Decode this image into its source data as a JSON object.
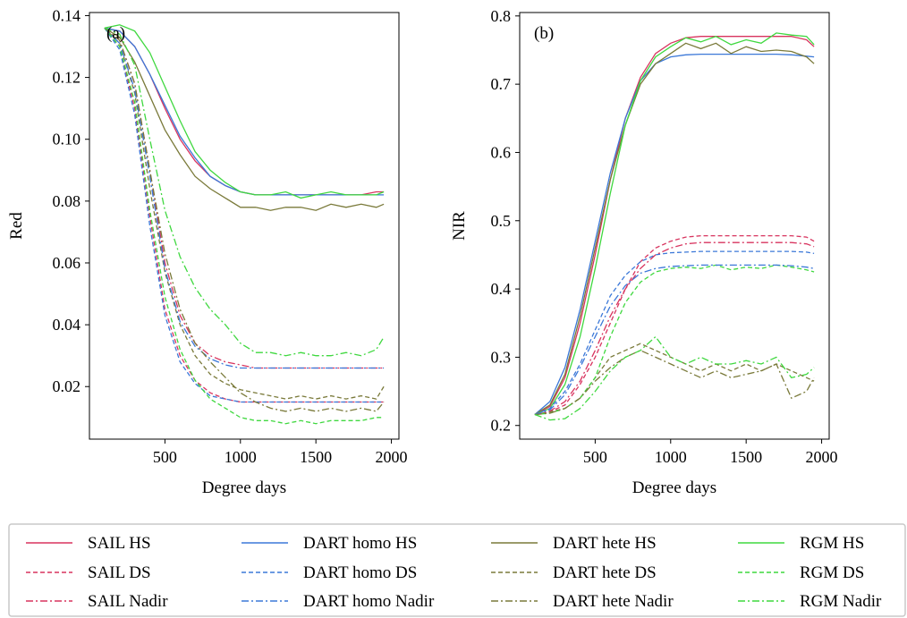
{
  "figure": {
    "legend_entries": [
      {
        "label": "SAIL HS",
        "color": "#d8345f",
        "dash": "solid"
      },
      {
        "label": "DART homo HS",
        "color": "#3b78d8",
        "dash": "solid"
      },
      {
        "label": "DART hete HS",
        "color": "#7a7a3a",
        "dash": "solid"
      },
      {
        "label": "RGM HS",
        "color": "#3fd83f",
        "dash": "solid"
      },
      {
        "label": "SAIL DS",
        "color": "#d8345f",
        "dash": "dashed"
      },
      {
        "label": "DART homo DS",
        "color": "#3b78d8",
        "dash": "dashed"
      },
      {
        "label": "DART hete DS",
        "color": "#7a7a3a",
        "dash": "dashed"
      },
      {
        "label": "RGM DS",
        "color": "#3fd83f",
        "dash": "dashed"
      },
      {
        "label": "SAIL Nadir",
        "color": "#d8345f",
        "dash": "dashdot"
      },
      {
        "label": "DART homo Nadir",
        "color": "#3b78d8",
        "dash": "dashdot"
      },
      {
        "label": "DART hete Nadir",
        "color": "#7a7a3a",
        "dash": "dashdot"
      },
      {
        "label": "RGM Nadir",
        "color": "#3fd83f",
        "dash": "dashdot"
      }
    ]
  },
  "chart_data": [
    {
      "type": "line",
      "panel_label": "(a)",
      "xlabel": "Degree days",
      "ylabel": "Red",
      "xlim": [
        0,
        2050
      ],
      "ylim": [
        0.003,
        0.141
      ],
      "xticks": [
        500,
        1000,
        1500,
        2000
      ],
      "yticks": [
        0.02,
        0.04,
        0.06,
        0.08,
        0.1,
        0.12,
        0.14
      ],
      "ytick_labels": [
        "0.02",
        "0.04",
        "0.06",
        "0.08",
        "0.10",
        "0.12",
        "0.14"
      ],
      "x": [
        100,
        200,
        300,
        400,
        500,
        600,
        700,
        800,
        900,
        1000,
        1100,
        1200,
        1300,
        1400,
        1500,
        1600,
        1700,
        1800,
        1900,
        1950
      ],
      "series": [
        {
          "name": "SAIL HS",
          "values": [
            0.136,
            0.135,
            0.13,
            0.121,
            0.11,
            0.1,
            0.093,
            0.088,
            0.085,
            0.083,
            0.082,
            0.082,
            0.082,
            0.082,
            0.082,
            0.082,
            0.082,
            0.082,
            0.083,
            0.083
          ]
        },
        {
          "name": "DART homo HS",
          "values": [
            0.136,
            0.135,
            0.13,
            0.121,
            0.111,
            0.101,
            0.094,
            0.088,
            0.085,
            0.083,
            0.082,
            0.082,
            0.082,
            0.082,
            0.082,
            0.082,
            0.082,
            0.082,
            0.082,
            0.082
          ]
        },
        {
          "name": "DART hete HS",
          "values": [
            0.136,
            0.133,
            0.125,
            0.114,
            0.103,
            0.095,
            0.088,
            0.084,
            0.081,
            0.078,
            0.078,
            0.077,
            0.078,
            0.078,
            0.077,
            0.079,
            0.078,
            0.079,
            0.078,
            0.079
          ]
        },
        {
          "name": "RGM HS",
          "values": [
            0.136,
            0.137,
            0.135,
            0.128,
            0.117,
            0.106,
            0.096,
            0.09,
            0.086,
            0.083,
            0.082,
            0.082,
            0.083,
            0.081,
            0.082,
            0.083,
            0.082,
            0.082,
            0.082,
            0.083
          ]
        },
        {
          "name": "SAIL DS",
          "values": [
            0.136,
            0.13,
            0.11,
            0.075,
            0.045,
            0.03,
            0.022,
            0.018,
            0.016,
            0.015,
            0.015,
            0.015,
            0.015,
            0.015,
            0.015,
            0.015,
            0.015,
            0.015,
            0.015,
            0.015
          ]
        },
        {
          "name": "DART homo DS",
          "values": [
            0.136,
            0.129,
            0.108,
            0.072,
            0.043,
            0.028,
            0.021,
            0.017,
            0.016,
            0.015,
            0.015,
            0.015,
            0.015,
            0.015,
            0.015,
            0.015,
            0.015,
            0.015,
            0.015,
            0.015
          ]
        },
        {
          "name": "DART hete DS",
          "values": [
            0.136,
            0.131,
            0.115,
            0.084,
            0.057,
            0.04,
            0.03,
            0.024,
            0.021,
            0.019,
            0.018,
            0.017,
            0.016,
            0.017,
            0.016,
            0.017,
            0.016,
            0.017,
            0.016,
            0.02
          ]
        },
        {
          "name": "RGM DS",
          "values": [
            0.136,
            0.13,
            0.112,
            0.077,
            0.049,
            0.032,
            0.022,
            0.016,
            0.013,
            0.01,
            0.009,
            0.009,
            0.008,
            0.009,
            0.008,
            0.009,
            0.009,
            0.009,
            0.01,
            0.01
          ]
        },
        {
          "name": "SAIL Nadir",
          "values": [
            0.136,
            0.132,
            0.118,
            0.09,
            0.06,
            0.043,
            0.034,
            0.03,
            0.028,
            0.027,
            0.026,
            0.026,
            0.026,
            0.026,
            0.026,
            0.026,
            0.026,
            0.026,
            0.026,
            0.026
          ]
        },
        {
          "name": "DART homo Nadir",
          "values": [
            0.136,
            0.131,
            0.116,
            0.088,
            0.058,
            0.041,
            0.033,
            0.029,
            0.027,
            0.026,
            0.026,
            0.026,
            0.026,
            0.026,
            0.026,
            0.026,
            0.026,
            0.026,
            0.026,
            0.026
          ]
        },
        {
          "name": "DART hete Nadir",
          "values": [
            0.136,
            0.132,
            0.118,
            0.09,
            0.063,
            0.045,
            0.034,
            0.028,
            0.023,
            0.018,
            0.015,
            0.013,
            0.012,
            0.013,
            0.012,
            0.013,
            0.012,
            0.013,
            0.012,
            0.015
          ]
        },
        {
          "name": "RGM Nadir",
          "values": [
            0.136,
            0.134,
            0.124,
            0.1,
            0.077,
            0.062,
            0.052,
            0.045,
            0.04,
            0.034,
            0.031,
            0.031,
            0.03,
            0.031,
            0.03,
            0.03,
            0.031,
            0.03,
            0.032,
            0.036
          ]
        }
      ]
    },
    {
      "type": "line",
      "panel_label": "(b)",
      "xlabel": "Degree days",
      "ylabel": "NIR",
      "xlim": [
        0,
        2050
      ],
      "ylim": [
        0.18,
        0.805
      ],
      "xticks": [
        500,
        1000,
        1500,
        2000
      ],
      "yticks": [
        0.2,
        0.3,
        0.4,
        0.5,
        0.6,
        0.7,
        0.8
      ],
      "ytick_labels": [
        "0.2",
        "0.3",
        "0.4",
        "0.5",
        "0.6",
        "0.7",
        "0.8"
      ],
      "x": [
        100,
        200,
        300,
        400,
        500,
        600,
        700,
        800,
        900,
        1000,
        1100,
        1200,
        1300,
        1400,
        1500,
        1600,
        1700,
        1800,
        1900,
        1950
      ],
      "series": [
        {
          "name": "SAIL HS",
          "values": [
            0.216,
            0.228,
            0.27,
            0.35,
            0.45,
            0.56,
            0.65,
            0.71,
            0.745,
            0.76,
            0.768,
            0.77,
            0.77,
            0.77,
            0.77,
            0.77,
            0.77,
            0.77,
            0.765,
            0.755
          ]
        },
        {
          "name": "DART homo HS",
          "values": [
            0.216,
            0.235,
            0.285,
            0.37,
            0.47,
            0.57,
            0.65,
            0.705,
            0.73,
            0.74,
            0.743,
            0.744,
            0.744,
            0.744,
            0.744,
            0.744,
            0.744,
            0.743,
            0.741,
            0.74
          ]
        },
        {
          "name": "DART hete HS",
          "values": [
            0.216,
            0.23,
            0.275,
            0.36,
            0.46,
            0.56,
            0.64,
            0.7,
            0.73,
            0.745,
            0.76,
            0.752,
            0.76,
            0.745,
            0.755,
            0.748,
            0.75,
            0.748,
            0.74,
            0.73
          ]
        },
        {
          "name": "RGM HS",
          "values": [
            0.216,
            0.225,
            0.26,
            0.33,
            0.43,
            0.54,
            0.64,
            0.705,
            0.74,
            0.755,
            0.768,
            0.762,
            0.77,
            0.758,
            0.765,
            0.76,
            0.775,
            0.772,
            0.77,
            0.758
          ]
        },
        {
          "name": "SAIL DS",
          "values": [
            0.216,
            0.22,
            0.23,
            0.26,
            0.3,
            0.35,
            0.4,
            0.44,
            0.46,
            0.47,
            0.476,
            0.478,
            0.478,
            0.478,
            0.478,
            0.478,
            0.478,
            0.478,
            0.476,
            0.47
          ]
        },
        {
          "name": "DART homo DS",
          "values": [
            0.216,
            0.225,
            0.25,
            0.29,
            0.34,
            0.39,
            0.42,
            0.44,
            0.45,
            0.453,
            0.454,
            0.455,
            0.455,
            0.455,
            0.455,
            0.455,
            0.455,
            0.455,
            0.454,
            0.452
          ]
        },
        {
          "name": "DART hete DS",
          "values": [
            0.216,
            0.22,
            0.225,
            0.24,
            0.27,
            0.3,
            0.31,
            0.32,
            0.31,
            0.3,
            0.29,
            0.28,
            0.29,
            0.28,
            0.29,
            0.28,
            0.29,
            0.28,
            0.27,
            0.265
          ]
        },
        {
          "name": "RGM DS",
          "values": [
            0.216,
            0.218,
            0.225,
            0.24,
            0.27,
            0.33,
            0.38,
            0.41,
            0.425,
            0.43,
            0.432,
            0.43,
            0.435,
            0.428,
            0.432,
            0.43,
            0.435,
            0.432,
            0.428,
            0.425
          ]
        },
        {
          "name": "SAIL Nadir",
          "values": [
            0.216,
            0.221,
            0.235,
            0.265,
            0.31,
            0.36,
            0.4,
            0.43,
            0.45,
            0.46,
            0.466,
            0.468,
            0.468,
            0.468,
            0.468,
            0.468,
            0.468,
            0.468,
            0.466,
            0.462
          ]
        },
        {
          "name": "DART homo Nadir",
          "values": [
            0.216,
            0.223,
            0.245,
            0.285,
            0.33,
            0.375,
            0.405,
            0.423,
            0.43,
            0.433,
            0.434,
            0.435,
            0.435,
            0.435,
            0.435,
            0.435,
            0.435,
            0.434,
            0.432,
            0.43
          ]
        },
        {
          "name": "DART hete Nadir",
          "values": [
            0.216,
            0.218,
            0.225,
            0.24,
            0.265,
            0.285,
            0.3,
            0.31,
            0.3,
            0.29,
            0.28,
            0.27,
            0.28,
            0.27,
            0.275,
            0.28,
            0.29,
            0.24,
            0.25,
            0.27
          ]
        },
        {
          "name": "RGM Nadir",
          "values": [
            0.216,
            0.208,
            0.21,
            0.225,
            0.25,
            0.28,
            0.3,
            0.31,
            0.33,
            0.3,
            0.29,
            0.3,
            0.29,
            0.29,
            0.295,
            0.29,
            0.3,
            0.27,
            0.275,
            0.285
          ]
        }
      ]
    }
  ]
}
